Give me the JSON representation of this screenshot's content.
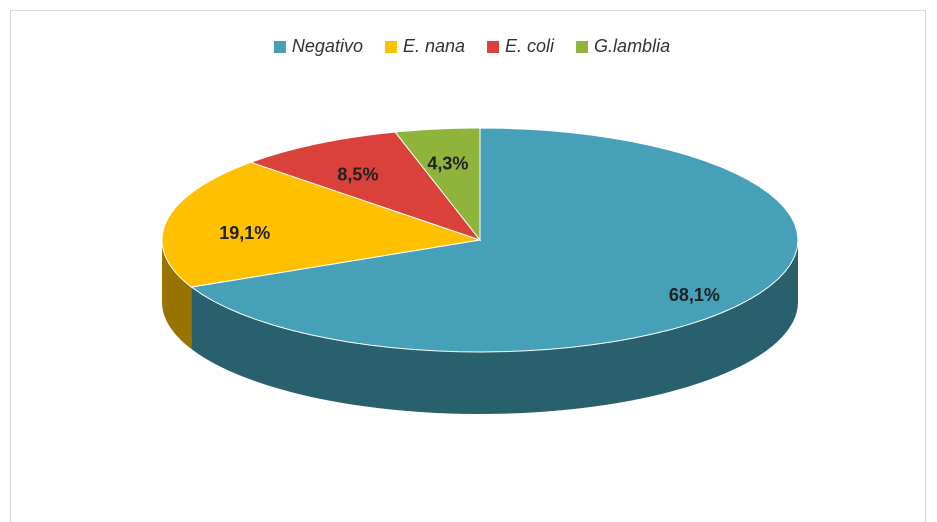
{
  "chart_data": {
    "type": "pie3d",
    "categories": [
      "Negativo",
      "E. nana",
      "E. coli",
      "G.lamblia"
    ],
    "values": [
      68.1,
      19.1,
      8.5,
      4.3
    ],
    "value_labels": [
      "68,1%",
      "19,1%",
      "8,5%",
      "4,3%"
    ],
    "colors": [
      "#45a0b8",
      "#ffc000",
      "#d9413a",
      "#8fb43c"
    ],
    "legend": "top"
  }
}
